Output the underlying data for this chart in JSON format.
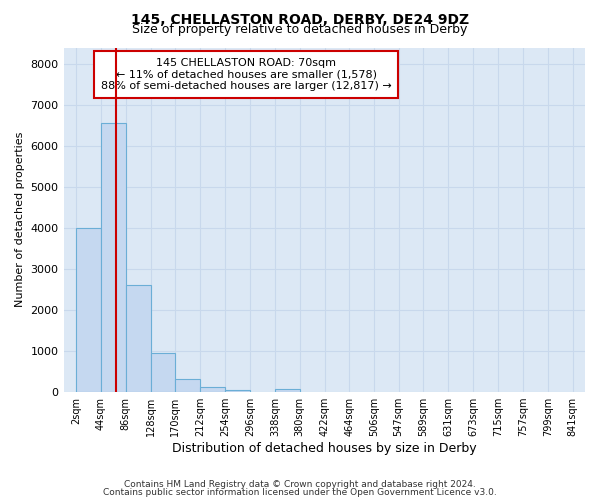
{
  "title1": "145, CHELLASTON ROAD, DERBY, DE24 9DZ",
  "title2": "Size of property relative to detached houses in Derby",
  "xlabel": "Distribution of detached houses by size in Derby",
  "ylabel": "Number of detached properties",
  "footer1": "Contains HM Land Registry data © Crown copyright and database right 2024.",
  "footer2": "Contains public sector information licensed under the Open Government Licence v3.0.",
  "annotation_line1": "145 CHELLASTON ROAD: 70sqm",
  "annotation_line2": "← 11% of detached houses are smaller (1,578)",
  "annotation_line3": "88% of semi-detached houses are larger (12,817) →",
  "property_size": 70,
  "bin_edges": [
    2,
    44,
    86,
    128,
    170,
    212,
    254,
    296,
    338,
    380,
    422,
    464,
    506,
    547,
    589,
    631,
    673,
    715,
    757,
    799,
    841
  ],
  "bar_heights": [
    4000,
    6550,
    2600,
    950,
    330,
    120,
    50,
    0,
    75,
    0,
    0,
    0,
    0,
    0,
    0,
    0,
    0,
    0,
    0,
    0
  ],
  "bar_color": "#c5d8f0",
  "bar_edge_color": "#6baed6",
  "vline_color": "#cc0000",
  "vline_x": 70,
  "annotation_box_edge": "#cc0000",
  "annotation_box_face": "#ffffff",
  "ylim": [
    0,
    8400
  ],
  "yticks": [
    0,
    1000,
    2000,
    3000,
    4000,
    5000,
    6000,
    7000,
    8000
  ],
  "grid_color": "#c8d8ec",
  "background_color": "#dce8f5"
}
